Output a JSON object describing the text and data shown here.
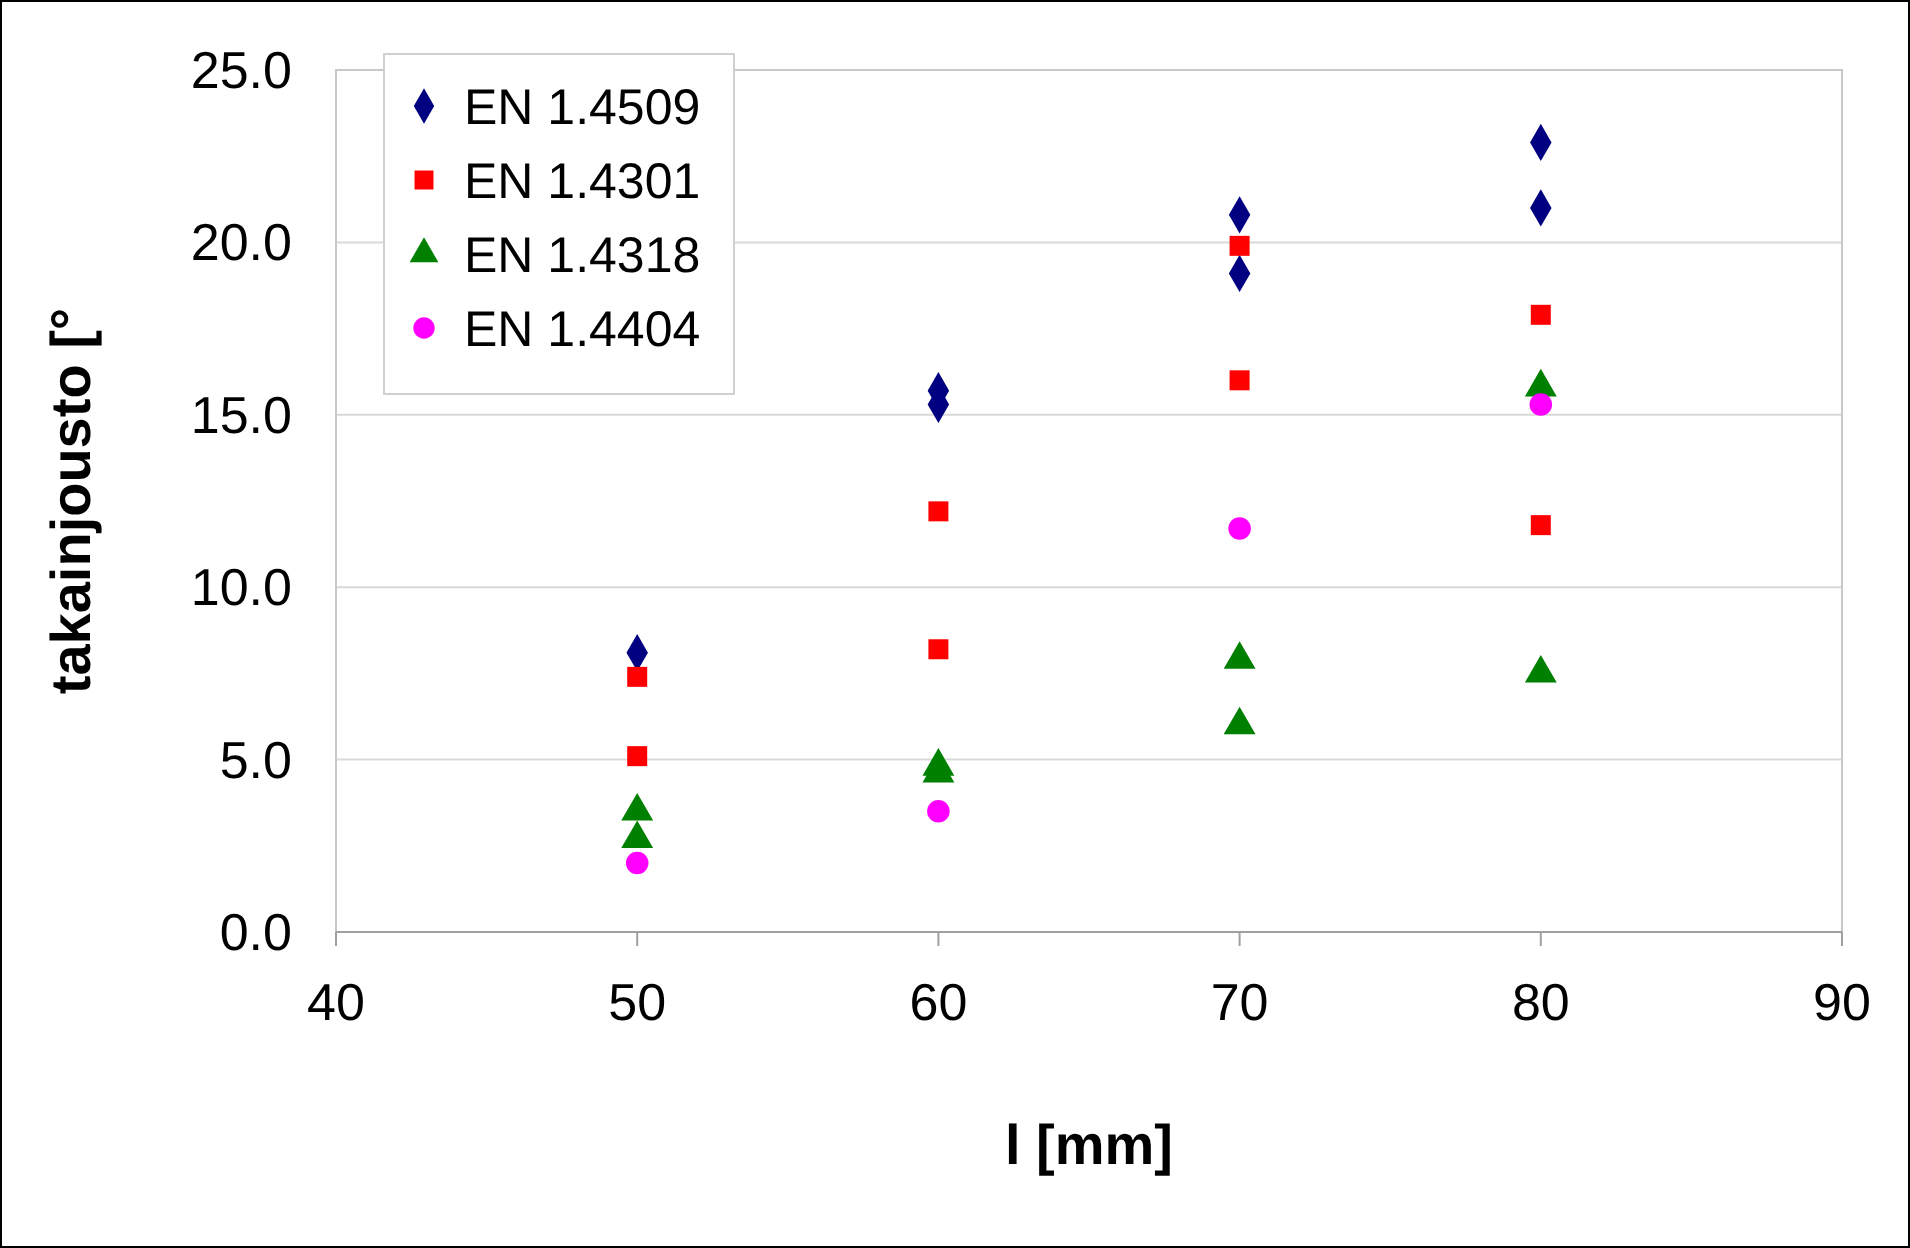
{
  "chart_data": {
    "type": "scatter",
    "xlabel": "l [mm]",
    "ylabel": "takainjousto [°",
    "xlim": [
      40,
      90
    ],
    "xticks": [
      40,
      50,
      60,
      70,
      80,
      90
    ],
    "ylim": [
      0,
      25
    ],
    "yticks": [
      {
        "value": 0,
        "label": "0.0"
      },
      {
        "value": 5,
        "label": "5.0"
      },
      {
        "value": 10,
        "label": "10.0"
      },
      {
        "value": 15,
        "label": "15.0"
      },
      {
        "value": 20,
        "label": "20.0"
      },
      {
        "value": 25,
        "label": "25.0"
      }
    ],
    "grid": "y",
    "legend": "top left",
    "series": [
      {
        "name": "EN 1.4509",
        "color": "#000080",
        "marker": "diamond",
        "x": [
          50,
          60,
          60,
          70,
          70,
          80,
          80
        ],
        "values": [
          8.1,
          15.7,
          15.3,
          20.8,
          19.1,
          22.9,
          21.0
        ]
      },
      {
        "name": "EN 1.4301",
        "color": "#ff0000",
        "marker": "square",
        "x": [
          50,
          50,
          60,
          60,
          70,
          70,
          80,
          80
        ],
        "values": [
          7.4,
          5.1,
          12.2,
          8.2,
          19.9,
          16.0,
          17.9,
          11.8
        ]
      },
      {
        "name": "EN 1.4318",
        "color": "#008000",
        "marker": "triangle",
        "x": [
          50,
          50,
          60,
          60,
          70,
          70,
          80,
          80
        ],
        "values": [
          3.5,
          2.7,
          4.8,
          4.6,
          7.9,
          6.0,
          15.8,
          7.5
        ]
      },
      {
        "name": "EN 1.4404",
        "color": "#ff00ff",
        "marker": "circle",
        "x": [
          50,
          60,
          70,
          80
        ],
        "values": [
          2.0,
          3.5,
          11.7,
          15.3
        ]
      }
    ]
  }
}
